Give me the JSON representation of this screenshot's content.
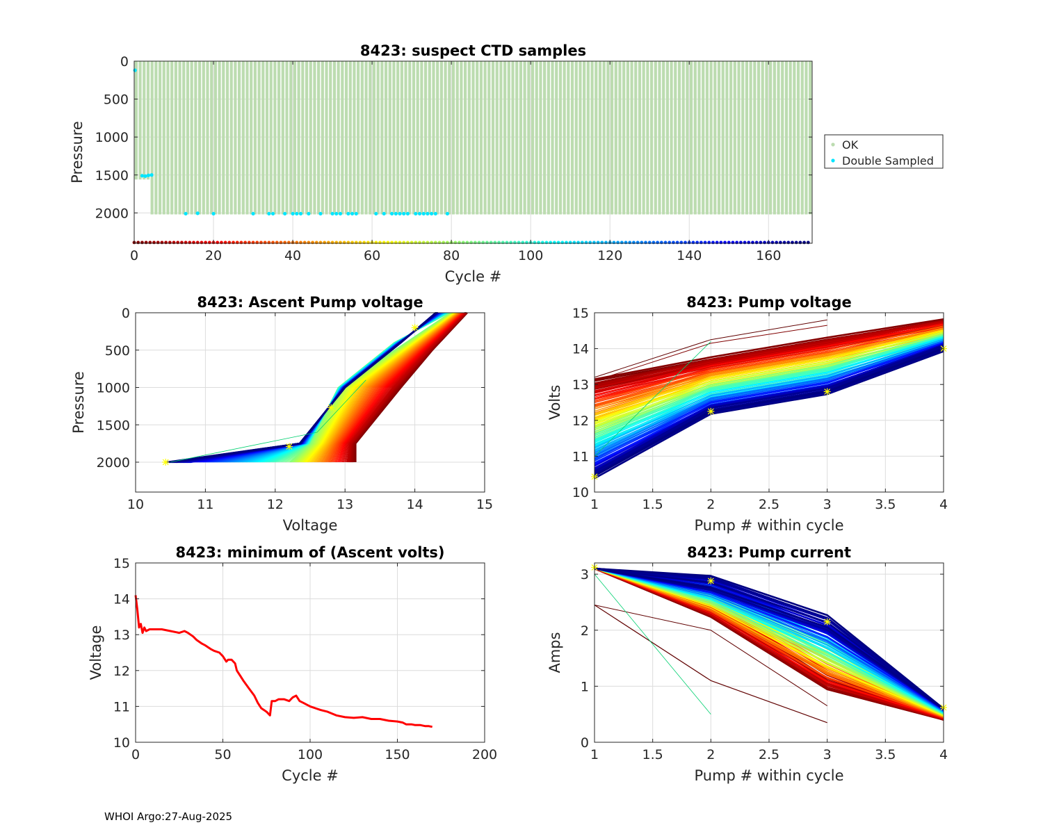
{
  "footer": "WHOI Argo:27-Aug-2025",
  "colors": {
    "ok": "#bcdcb0",
    "double_sampled": "#00e5ff",
    "min_volts": "#ff0000",
    "marker": "#ffff00",
    "grid": "#dcdcdc"
  },
  "chart_data": [
    {
      "id": "suspect",
      "type": "scatter",
      "title": "8423: suspect CTD samples",
      "xlabel": "Cycle #",
      "ylabel": "Pressure",
      "xlim": [
        0,
        171
      ],
      "ylim": [
        2400,
        0
      ],
      "y_reversed": true,
      "xticks": [
        0,
        20,
        40,
        60,
        80,
        100,
        120,
        140,
        160
      ],
      "yticks": [
        0,
        500,
        1000,
        1500,
        2000
      ],
      "grid": true,
      "legend": {
        "position": "outside-right",
        "entries": [
          "OK",
          "Double Sampled"
        ]
      },
      "ok_profiles": {
        "first_cycle": 0,
        "last_cycle": 171,
        "max_pressure_first_cycles": [
          1560,
          1560,
          1560,
          1560
        ],
        "max_pressure": 2020
      },
      "double_sampled": [
        [
          0.2,
          120
        ],
        [
          2,
          1510
        ],
        [
          2.8,
          1515
        ],
        [
          3.6,
          1505
        ],
        [
          4.4,
          1500
        ],
        [
          13,
          2010
        ],
        [
          16,
          2005
        ],
        [
          20,
          2010
        ],
        [
          30,
          2010
        ],
        [
          34,
          2010
        ],
        [
          35,
          2010
        ],
        [
          38,
          2010
        ],
        [
          40,
          2010
        ],
        [
          41,
          2010
        ],
        [
          42,
          2010
        ],
        [
          44,
          2010
        ],
        [
          47,
          2010
        ],
        [
          50,
          2010
        ],
        [
          51,
          2010
        ],
        [
          52,
          2010
        ],
        [
          54,
          2010
        ],
        [
          55,
          2010
        ],
        [
          56,
          2010
        ],
        [
          61,
          2010
        ],
        [
          63,
          2010
        ],
        [
          65,
          2010
        ],
        [
          66,
          2010
        ],
        [
          67,
          2010
        ],
        [
          68,
          2010
        ],
        [
          69,
          2010
        ],
        [
          71,
          2010
        ],
        [
          72,
          2010
        ],
        [
          73,
          2010
        ],
        [
          74,
          2010
        ],
        [
          75,
          2010
        ],
        [
          76,
          2010
        ],
        [
          79,
          2010
        ]
      ],
      "cycle_color_strip": {
        "pressure": 2390,
        "count": 171
      }
    },
    {
      "id": "ascent",
      "type": "line",
      "title": "8423: Ascent Pump voltage",
      "xlabel": "Voltage",
      "ylabel": "Pressure",
      "xlim": [
        10,
        15
      ],
      "ylim": [
        2400,
        0
      ],
      "y_reversed": true,
      "xticks": [
        10,
        11,
        12,
        13,
        14,
        15
      ],
      "yticks": [
        0,
        500,
        1000,
        1500,
        2000
      ],
      "grid": true,
      "series_template": {
        "early_cycles": [
          [
            13.15,
            2000
          ],
          [
            13.8,
            1000
          ],
          [
            14.25,
            500
          ],
          [
            14.75,
            0
          ]
        ],
        "mid_cycles": [
          [
            12.2,
            2000
          ],
          [
            12.9,
            1000
          ],
          [
            13.7,
            500
          ],
          [
            14.5,
            0
          ]
        ],
        "late_cycles": [
          [
            10.45,
            2000
          ],
          [
            12.35,
            1750
          ],
          [
            13.0,
            1000
          ],
          [
            13.8,
            400
          ],
          [
            14.3,
            0
          ]
        ]
      },
      "markers": [
        [
          10.43,
          2000
        ],
        [
          12.2,
          1790
        ],
        [
          12.8,
          1270
        ],
        [
          14.0,
          200
        ]
      ]
    },
    {
      "id": "pumpv",
      "type": "line",
      "title": "8423: Pump voltage",
      "xlabel": "Pump # within cycle",
      "ylabel": "Volts",
      "xlim": [
        1,
        4
      ],
      "ylim": [
        10,
        15
      ],
      "xticks": [
        1,
        1.5,
        2,
        2.5,
        3,
        3.5,
        4
      ],
      "xtick_labels": [
        "1",
        "1.5",
        "2",
        "2.5",
        "3",
        "3.5",
        "4"
      ],
      "yticks": [
        10,
        11,
        12,
        13,
        14,
        15
      ],
      "grid": true,
      "series_template": {
        "early_cycles": [
          13.1,
          13.7,
          14.25,
          14.75
        ],
        "late_cycles": [
          10.45,
          12.25,
          12.8,
          14.0
        ]
      },
      "outliers": [
        [
          13.2,
          14.25,
          14.8
        ],
        [
          13.1,
          14.15,
          14.65
        ],
        [
          11.0,
          14.2
        ]
      ],
      "markers": [
        [
          1,
          10.43
        ],
        [
          2,
          12.25
        ],
        [
          3,
          12.8
        ],
        [
          4,
          14.0
        ]
      ]
    },
    {
      "id": "minvolts",
      "type": "line",
      "title": "8423: minimum of (Ascent volts)",
      "xlabel": "Cycle #",
      "ylabel": "Voltage",
      "xlim": [
        0,
        200
      ],
      "ylim": [
        10,
        15
      ],
      "xticks": [
        0,
        50,
        100,
        150,
        200
      ],
      "yticks": [
        10,
        11,
        12,
        13,
        14,
        15
      ],
      "grid": true,
      "x": [
        0,
        1,
        2,
        3,
        4,
        5,
        6,
        8,
        10,
        15,
        20,
        25,
        28,
        30,
        33,
        35,
        38,
        40,
        43,
        45,
        48,
        50,
        52,
        53,
        55,
        57,
        58,
        60,
        62,
        65,
        68,
        70,
        72,
        75,
        77,
        78,
        80,
        82,
        85,
        88,
        90,
        92,
        94,
        96,
        98,
        100,
        103,
        106,
        110,
        115,
        120,
        125,
        130,
        135,
        140,
        145,
        150,
        153,
        155,
        158,
        160,
        163,
        166,
        168,
        170
      ],
      "y": [
        14.1,
        13.7,
        13.2,
        13.3,
        13.05,
        13.2,
        13.1,
        13.15,
        13.15,
        13.15,
        13.1,
        13.05,
        13.1,
        13.05,
        12.95,
        12.85,
        12.75,
        12.7,
        12.6,
        12.55,
        12.5,
        12.4,
        12.25,
        12.3,
        12.3,
        12.2,
        12.0,
        11.85,
        11.7,
        11.5,
        11.3,
        11.1,
        10.95,
        10.85,
        10.75,
        11.15,
        11.15,
        11.2,
        11.2,
        11.15,
        11.25,
        11.3,
        11.15,
        11.1,
        11.05,
        11.0,
        10.95,
        10.9,
        10.85,
        10.75,
        10.7,
        10.68,
        10.7,
        10.65,
        10.65,
        10.6,
        10.58,
        10.55,
        10.5,
        10.5,
        10.48,
        10.48,
        10.45,
        10.45,
        10.43
      ]
    },
    {
      "id": "pumpc",
      "type": "line",
      "title": "8423: Pump current",
      "xlabel": "Pump # within cycle",
      "ylabel": "Amps",
      "xlim": [
        1,
        4
      ],
      "ylim": [
        0,
        3.2
      ],
      "xticks": [
        1,
        1.5,
        2,
        2.5,
        3,
        3.5,
        4
      ],
      "xtick_labels": [
        "1",
        "1.5",
        "2",
        "2.5",
        "3",
        "3.5",
        "4"
      ],
      "yticks": [
        0,
        1,
        2,
        3
      ],
      "grid": true,
      "series_template": {
        "early_cycles": [
          3.1,
          2.35,
          1.05,
          0.4
        ],
        "late_cycles": [
          3.1,
          2.85,
          2.15,
          0.6
        ]
      },
      "outliers": [
        [
          2.45,
          1.1,
          0.35
        ],
        [
          3.0,
          0.5
        ],
        [
          2.45,
          2.0,
          0.65
        ]
      ],
      "markers": [
        [
          1,
          3.12
        ],
        [
          2,
          2.88
        ],
        [
          3,
          2.15
        ],
        [
          4,
          0.62
        ]
      ]
    }
  ]
}
